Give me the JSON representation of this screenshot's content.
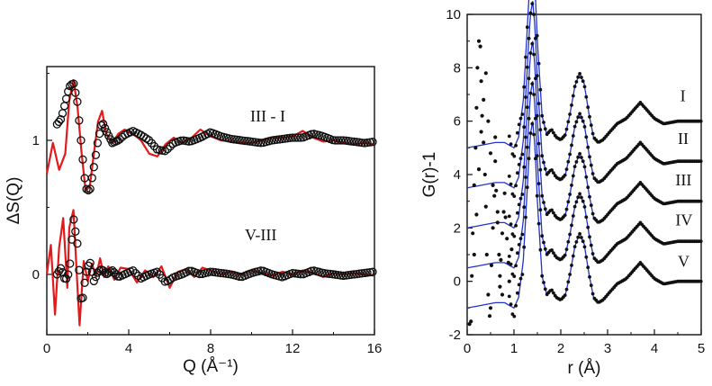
{
  "chart_data": [
    {
      "type": "line",
      "xlabel": "Q (Å⁻¹)",
      "ylabel": "ΔS(Q)",
      "xlim": [
        0,
        16
      ],
      "ylim": [
        -0.45,
        1.55
      ],
      "xticks": [
        "0",
        "4",
        "8",
        "12",
        "16"
      ],
      "yticks": [
        "0",
        "1"
      ],
      "ytick_values": [
        0,
        1
      ],
      "grid": false,
      "legend": "none",
      "colors": {
        "data": "#111111",
        "fit": "#e31a1c"
      },
      "annotations": [
        {
          "text": "III - I",
          "x": 10.4,
          "y": 1.18
        },
        {
          "text": "V-III",
          "x": 10.3,
          "y": 0.17
        }
      ],
      "series": [
        {
          "style": "circles",
          "offset": 1,
          "x": [
            0.5,
            0.7,
            0.9,
            1.1,
            1.3,
            1.5,
            1.7,
            1.9,
            2.1,
            2.3,
            2.5,
            2.7,
            2.9,
            3.2,
            3.5,
            3.8,
            4.2,
            4.6,
            5.0,
            5.4,
            5.8,
            6.2,
            6.6,
            7.0,
            7.5,
            8.0,
            8.5,
            9.0,
            9.5,
            10.0,
            10.5,
            11.0,
            11.5,
            12.0,
            12.5,
            13.0,
            13.5,
            14.0,
            14.5,
            15.0,
            15.5,
            16.0
          ],
          "y": [
            1.12,
            1.16,
            1.28,
            1.4,
            1.43,
            1.28,
            0.95,
            0.64,
            0.62,
            0.8,
            1.0,
            1.14,
            1.07,
            0.98,
            1.0,
            1.04,
            1.07,
            1.04,
            1.0,
            0.93,
            0.92,
            0.98,
            1.0,
            0.99,
            1.02,
            1.06,
            1.03,
            1.01,
            1.0,
            0.99,
            0.98,
            1.0,
            1.01,
            1.02,
            1.02,
            1.05,
            1.03,
            1.0,
            1.0,
            0.99,
            0.98,
            0.99
          ]
        },
        {
          "style": "line",
          "offset": 1,
          "x": [
            0.0,
            0.3,
            0.6,
            0.9,
            1.1,
            1.3,
            1.5,
            1.7,
            1.9,
            2.1,
            2.3,
            2.5,
            2.7,
            2.9,
            3.2,
            3.5,
            3.8,
            4.2,
            4.6,
            5.0,
            5.4,
            5.8,
            6.2,
            6.6,
            7.0,
            7.5,
            8.0,
            8.5,
            9.0,
            9.5,
            10.0,
            10.5,
            11.0,
            11.5,
            12.0,
            12.5,
            13.0,
            13.5,
            14.0,
            14.5,
            15.0,
            15.5,
            16.0
          ],
          "y": [
            0.75,
            0.98,
            0.78,
            0.9,
            1.3,
            1.45,
            1.25,
            0.9,
            0.62,
            0.66,
            0.9,
            1.14,
            1.22,
            1.05,
            0.98,
            1.05,
            1.08,
            1.05,
            1.0,
            0.9,
            0.88,
            0.97,
            1.02,
            0.98,
            1.01,
            1.08,
            1.03,
            1.0,
            0.99,
            0.98,
            0.98,
            1.0,
            1.02,
            1.02,
            1.03,
            1.07,
            1.02,
            0.99,
            1.0,
            0.98,
            0.97,
            0.98,
            0.97
          ]
        },
        {
          "style": "circles",
          "offset": 0,
          "x": [
            0.5,
            0.7,
            0.9,
            1.1,
            1.3,
            1.5,
            1.7,
            1.9,
            2.1,
            2.3,
            2.5,
            2.7,
            2.9,
            3.2,
            3.5,
            3.8,
            4.2,
            4.6,
            5.0,
            5.4,
            5.8,
            6.2,
            6.6,
            7.0,
            7.5,
            8.0,
            8.5,
            9.0,
            9.5,
            10.0,
            10.5,
            11.0,
            11.5,
            12.0,
            12.5,
            13.0,
            13.5,
            14.0,
            14.5,
            15.0,
            15.5,
            16.0
          ],
          "y": [
            0.0,
            0.05,
            -0.05,
            0.02,
            0.42,
            0.22,
            -0.25,
            0.0,
            0.1,
            -0.05,
            0.02,
            0.04,
            0.0,
            0.03,
            -0.02,
            0.0,
            0.03,
            -0.03,
            0.0,
            0.02,
            -0.06,
            -0.02,
            0.0,
            0.03,
            0.0,
            0.02,
            0.01,
            0.0,
            -0.02,
            0.01,
            0.03,
            0.0,
            -0.02,
            0.01,
            0.0,
            0.03,
            0.01,
            0.0,
            -0.01,
            0.0,
            0.01,
            0.02
          ]
        },
        {
          "style": "line",
          "offset": 0,
          "x": [
            0.0,
            0.2,
            0.4,
            0.6,
            0.8,
            1.0,
            1.1,
            1.3,
            1.5,
            1.6,
            1.8,
            2.0,
            2.2,
            2.4,
            2.6,
            2.8,
            3.0,
            3.3,
            3.6,
            4.0,
            4.4,
            4.8,
            5.2,
            5.6,
            6.0,
            6.4,
            6.8,
            7.2,
            7.6,
            8.0,
            8.5,
            9.0,
            9.5,
            10.0,
            10.5,
            11.0,
            11.5,
            12.0,
            12.5,
            13.0,
            13.5,
            14.0,
            14.5,
            15.0,
            15.5,
            16.0
          ],
          "y": [
            0.0,
            0.22,
            -0.3,
            0.2,
            0.42,
            -0.1,
            0.35,
            0.48,
            -0.1,
            -0.38,
            0.1,
            -0.05,
            0.08,
            -0.02,
            0.12,
            -0.02,
            0.06,
            -0.04,
            0.05,
            0.04,
            -0.06,
            0.03,
            -0.02,
            0.06,
            -0.1,
            0.02,
            0.04,
            -0.02,
            0.05,
            0.03,
            0.0,
            0.02,
            0.0,
            0.03,
            0.01,
            -0.01,
            0.02,
            0.0,
            0.03,
            0.01,
            -0.02,
            0.01,
            0.0,
            0.01,
            0.0,
            -0.01
          ]
        }
      ]
    },
    {
      "type": "line",
      "xlabel": "r (Å)",
      "ylabel": "G(r)-1",
      "xlim": [
        0,
        5
      ],
      "ylim": [
        -2,
        10
      ],
      "xticks": [
        "0",
        "1",
        "2",
        "3",
        "4",
        "5"
      ],
      "yticks": [
        "-2",
        "0",
        "2",
        "4",
        "6",
        "8",
        "10"
      ],
      "ytick_values": [
        -2,
        0,
        2,
        4,
        6,
        8,
        10
      ],
      "grid": false,
      "legend": "none",
      "colors": {
        "data": "#111111",
        "fit": "#2233cc"
      },
      "annotations": [
        {
          "text": "I",
          "x": 4.55,
          "y": 6.75
        },
        {
          "text": "II",
          "x": 4.5,
          "y": 5.15
        },
        {
          "text": "III",
          "x": 4.45,
          "y": 3.6
        },
        {
          "text": "IV",
          "x": 4.45,
          "y": 2.1
        },
        {
          "text": "V",
          "x": 4.5,
          "y": 0.55
        }
      ],
      "profile": {
        "r": [
          0.0,
          0.3,
          0.6,
          0.8,
          0.9,
          1.0,
          1.1,
          1.2,
          1.3,
          1.35,
          1.4,
          1.45,
          1.5,
          1.6,
          1.7,
          1.8,
          1.9,
          2.0,
          2.1,
          2.2,
          2.3,
          2.4,
          2.5,
          2.6,
          2.7,
          2.8,
          2.9,
          3.0,
          3.2,
          3.4,
          3.6,
          3.7,
          3.8,
          4.0,
          4.2,
          4.5,
          4.8,
          5.0
        ],
        "g_fit": [
          -1.0,
          -0.9,
          -0.8,
          -0.8,
          -0.9,
          -1.0,
          -0.6,
          0.8,
          4.0,
          5.5,
          6.0,
          5.0,
          3.0,
          0.2,
          -0.5,
          -0.3,
          -0.6,
          -0.7,
          -0.5,
          0.3,
          1.3,
          1.8,
          1.4,
          0.3,
          -0.6,
          -0.8,
          -0.7,
          -0.5,
          -0.1,
          0.1,
          0.5,
          0.7,
          0.5,
          0.1,
          -0.1,
          0.0,
          0.0,
          0.0
        ]
      },
      "series": [
        {
          "name": "I",
          "offset": 6.0,
          "style": "points+line"
        },
        {
          "name": "II",
          "offset": 4.5,
          "style": "points+line"
        },
        {
          "name": "III",
          "offset": 3.0,
          "style": "points+line"
        },
        {
          "name": "IV",
          "offset": 1.5,
          "style": "points+line"
        },
        {
          "name": "V",
          "offset": 0.0,
          "style": "points+line"
        }
      ],
      "lowr_points": {
        "x": [
          0.05,
          0.08,
          0.1,
          0.12,
          0.15,
          0.18,
          0.2,
          0.22,
          0.25,
          0.28,
          0.3,
          0.32,
          0.35,
          0.38,
          0.4,
          0.42,
          0.45,
          0.48,
          0.5,
          0.52,
          0.55,
          0.58,
          0.6,
          0.62,
          0.65,
          0.68,
          0.7,
          0.72,
          0.75,
          0.78,
          0.8,
          0.82,
          0.85,
          0.88,
          0.9,
          0.95,
          0.15,
          0.2,
          0.25,
          0.3,
          0.35,
          0.4,
          0.45,
          0.5,
          0.55,
          0.6,
          0.65,
          0.7,
          0.75
        ],
        "y": [
          -1.6,
          -1.5,
          0.2,
          1.8,
          3.6,
          5.0,
          6.5,
          8.0,
          9.0,
          8.8,
          7.5,
          6.2,
          5.2,
          4.0,
          2.8,
          1.0,
          -0.5,
          -1.3,
          -1.0,
          0.6,
          2.0,
          3.2,
          4.5,
          3.4,
          2.2,
          1.0,
          -0.2,
          0.8,
          1.8,
          2.6,
          3.3,
          2.4,
          1.6,
          0.7,
          0.0,
          1.2,
          1.0,
          2.5,
          4.2,
          5.6,
          6.8,
          7.8,
          6.0,
          4.8,
          3.6,
          5.4,
          2.6,
          0.2,
          -0.5
        ]
      }
    }
  ]
}
